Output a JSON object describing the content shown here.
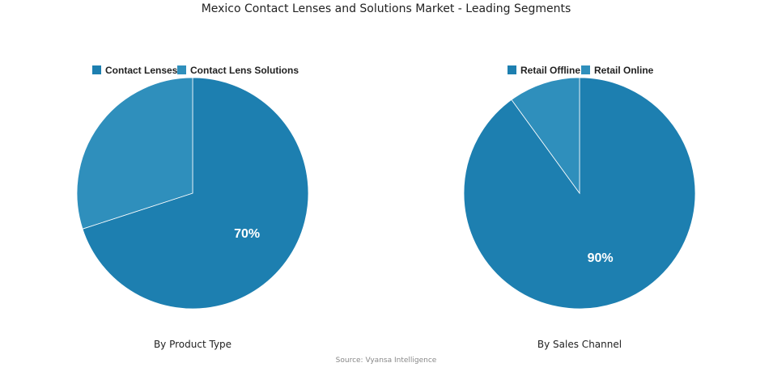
{
  "title": "Mexico Contact Lenses and Solutions Market - Leading Segments",
  "source": "Source: Vyansa Intelligence",
  "colors": {
    "primary": "#1d7fb0",
    "secondary": "#2f8fbc",
    "divider": "#ffffff"
  },
  "chart_data": [
    {
      "type": "pie",
      "caption": "By Product Type",
      "legend_position": "top",
      "series": [
        {
          "name": "Contact Lenses",
          "value": 70,
          "label": "70%"
        },
        {
          "name": "Contact Lens Solutions",
          "value": 30,
          "label": ""
        }
      ]
    },
    {
      "type": "pie",
      "caption": "By Sales Channel",
      "legend_position": "top",
      "series": [
        {
          "name": "Retail Offline",
          "value": 90,
          "label": "90%"
        },
        {
          "name": "Retail Online",
          "value": 10,
          "label": ""
        }
      ]
    }
  ]
}
